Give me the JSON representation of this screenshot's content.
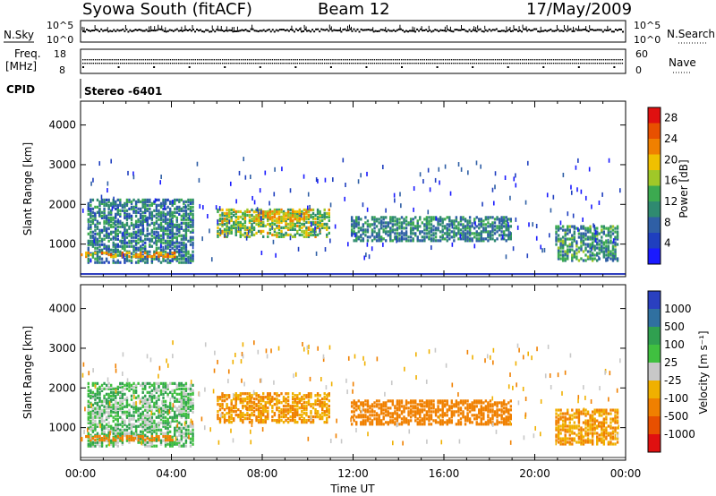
{
  "header": {
    "station": "Syowa South (fitACF)",
    "beam": "Beam 12",
    "date": "17/May/2009"
  },
  "strip_labels": {
    "nsky": "N.Sky",
    "freq_line1": "Freq.",
    "freq_line2": "[MHz]",
    "cpid": "CPID",
    "nsearch": "N.Search",
    "nave": "Nave",
    "cpid_value": "Stereo -6401",
    "nsky_ticks": [
      "10^5",
      "10^0"
    ],
    "nsearch_ticks": [
      "10^5",
      "10^0"
    ],
    "freq_ticks": [
      "18",
      "8"
    ],
    "nave_ticks": [
      "60",
      "0"
    ]
  },
  "colors": {
    "power_scale": [
      "#1a1aff",
      "#1f3fbf",
      "#2f5fa5",
      "#2f8a70",
      "#3caa50",
      "#a0c828",
      "#f0c000",
      "#f08000",
      "#e85000",
      "#e01010"
    ],
    "velocity_scale": [
      "#e01010",
      "#e85000",
      "#f08000",
      "#f0b000",
      "#c8c8c8",
      "#40c040",
      "#30a050",
      "#3070a0",
      "#2a40c0"
    ]
  },
  "chart_data": [
    {
      "type": "heatmap",
      "name": "power",
      "ylabel": "Slant Range [km]",
      "yticks": [
        "1000",
        "2000",
        "3000",
        "4000"
      ],
      "ylim": [
        180,
        4600
      ],
      "xlim": [
        0,
        24
      ],
      "xticks": [
        "00:00",
        "04:00",
        "08:00",
        "12:00",
        "16:00",
        "20:00",
        "00:00"
      ],
      "colorbar": {
        "label": "Power [dB]",
        "ticks": [
          "4",
          "8",
          "12",
          "16",
          "20",
          "24",
          "28"
        ],
        "range": [
          0,
          30
        ]
      },
      "regions": [
        {
          "t0": 0.3,
          "t1": 4.9,
          "r0": 500,
          "r1": 2100,
          "base": 5,
          "spread": 9
        },
        {
          "t0": 6.0,
          "t1": 10.9,
          "r0": 1150,
          "r1": 1850,
          "base": 10,
          "spread": 12
        },
        {
          "t0": 7.6,
          "t1": 10.0,
          "r0": 1550,
          "r1": 1800,
          "base": 16,
          "spread": 8
        },
        {
          "t0": 11.9,
          "t1": 19.0,
          "r0": 1050,
          "r1": 1650,
          "base": 6,
          "spread": 8
        },
        {
          "t0": 20.9,
          "t1": 23.7,
          "r0": 550,
          "r1": 1450,
          "base": 6,
          "spread": 10
        },
        {
          "t0": 0.0,
          "t1": 4.2,
          "r0": 650,
          "r1": 760,
          "base": 18,
          "spread": 8
        }
      ]
    },
    {
      "type": "heatmap",
      "name": "velocity",
      "ylabel": "Slant Range [km]",
      "yticks": [
        "1000",
        "2000",
        "3000",
        "4000"
      ],
      "ylim": [
        180,
        4600
      ],
      "xlim": [
        0,
        24
      ],
      "xlabel": "Time UT",
      "xticks": [
        "00:00",
        "04:00",
        "08:00",
        "12:00",
        "16:00",
        "20:00",
        "00:00"
      ],
      "colorbar": {
        "label": "Velocity [m s⁻¹]",
        "ticks": [
          "1000",
          "500",
          "100",
          "25",
          "-25",
          "-100",
          "-500",
          "-1000"
        ]
      },
      "regions": [
        {
          "t0": 0.3,
          "t1": 4.9,
          "r0": 500,
          "r1": 2100,
          "base": 4,
          "spread": 3
        },
        {
          "t0": 6.0,
          "t1": 10.9,
          "r0": 1100,
          "r1": 1850,
          "base": 2,
          "spread": 2
        },
        {
          "t0": 11.9,
          "t1": 19.0,
          "r0": 1050,
          "r1": 1650,
          "base": 2,
          "spread": 1
        },
        {
          "t0": 20.9,
          "t1": 23.7,
          "r0": 550,
          "r1": 1450,
          "base": 2,
          "spread": 2
        },
        {
          "t0": 0.0,
          "t1": 4.2,
          "r0": 650,
          "r1": 760,
          "base": 2,
          "spread": 1
        }
      ]
    }
  ]
}
